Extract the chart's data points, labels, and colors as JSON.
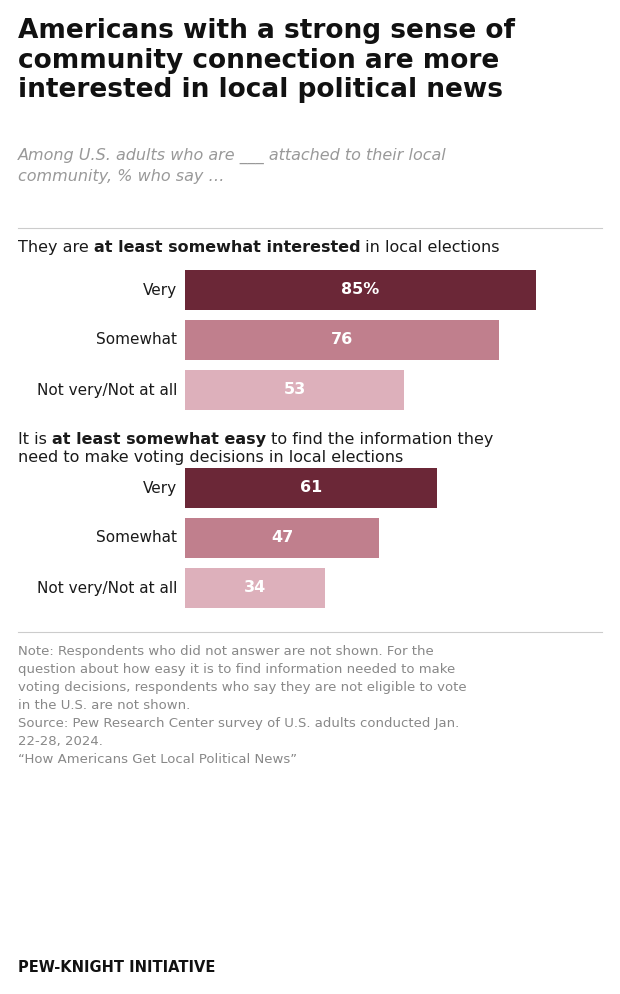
{
  "title": "Americans with a strong sense of\ncommunity connection are more\ninterested in local political news",
  "subtitle_italic": "Among U.S. adults who are ___ attached to their local\ncommunity, % who say …",
  "section1_normal1": "They are ",
  "section1_bold": "at least somewhat interested",
  "section1_normal2": " in local elections",
  "section2_normal1": "It is ",
  "section2_bold": "at least somewhat easy",
  "section2_normal2": " to find the information they",
  "section2_line2": "need to make voting decisions in local elections",
  "categories1": [
    "Very",
    "Somewhat",
    "Not very/Not at all"
  ],
  "values1": [
    85,
    76,
    53
  ],
  "colors1": [
    "#6b2737",
    "#c07f8d",
    "#ddb0bb"
  ],
  "label1_suffix": [
    "%",
    "",
    ""
  ],
  "categories2": [
    "Very",
    "Somewhat",
    "Not very/Not at all"
  ],
  "values2": [
    61,
    47,
    34
  ],
  "colors2": [
    "#6b2737",
    "#c07f8d",
    "#ddb0bb"
  ],
  "note_line1": "Note: Respondents who did not answer are not shown. For the",
  "note_line2": "question about how easy it is to find information needed to make",
  "note_line3": "voting decisions, respondents who say they are not eligible to vote",
  "note_line4": "in the U.S. are not shown.",
  "note_line5": "Source: Pew Research Center survey of U.S. adults conducted Jan.",
  "note_line6": "22-28, 2024.",
  "note_line7": "“How Americans Get Local Political News”",
  "footer": "PEW-KNIGHT INITIATIVE",
  "background_color": "#ffffff",
  "title_color": "#111111",
  "subtitle_color": "#999999",
  "body_color": "#1a1a1a",
  "note_color": "#888888"
}
